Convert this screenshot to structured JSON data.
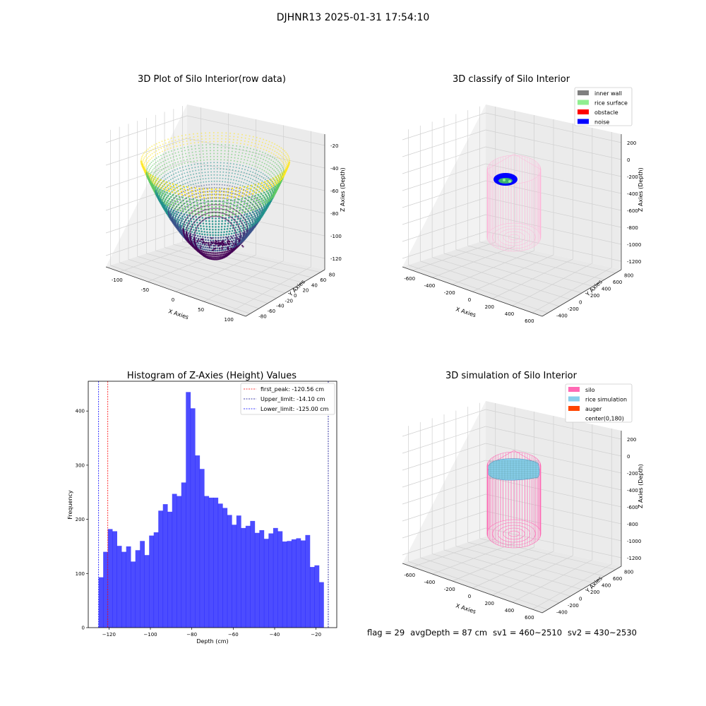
{
  "figure": {
    "suptitle": "DJHNR13 2025-01-31 17:54:10"
  },
  "footer": {
    "flag": "flag = 29",
    "avg_depth": "avgDepth = 87 cm",
    "sv1": "sv1 = 460~2510",
    "sv2": "sv2 = 430~2530"
  },
  "panels": {
    "raw": {
      "title": "3D Plot of Silo Interior(row data)",
      "x_label": "X Axies",
      "y_label": "Y Axies",
      "z_label": "Z Axies (Depth)",
      "x_ticks": [
        "-100",
        "-50",
        "0",
        "50",
        "100"
      ],
      "y_ticks": [
        "-80",
        "-60",
        "-40",
        "-20",
        "0",
        "20",
        "40",
        "60",
        "80"
      ],
      "z_ticks": [
        "-20",
        "-40",
        "-60",
        "-80",
        "-100",
        "-120"
      ],
      "colormap": [
        "#440154",
        "#3b528b",
        "#21918c",
        "#5ec962",
        "#fde725"
      ]
    },
    "classify": {
      "title": "3D classify of Silo Interior",
      "x_label": "X Axies",
      "y_label": "Y Axies",
      "z_label": "Z Axies (Depth)",
      "x_ticks": [
        "-600",
        "-400",
        "-200",
        "0",
        "200",
        "400",
        "600"
      ],
      "y_ticks": [
        "-400",
        "-200",
        "0",
        "200",
        "400",
        "600",
        "800"
      ],
      "z_ticks": [
        "200",
        "0",
        "-200",
        "-400",
        "-600",
        "-800",
        "-1000",
        "-1200"
      ],
      "legend": [
        {
          "label": "inner wall",
          "color": "#808080"
        },
        {
          "label": "rice surface",
          "color": "#90ee90"
        },
        {
          "label": "obstacle",
          "color": "#ff0000"
        },
        {
          "label": "noise",
          "color": "#0000ff"
        }
      ]
    },
    "simulation": {
      "title": "3D simulation of Silo Interior",
      "x_label": "X Axies",
      "y_label": "Y Axies",
      "z_label": "Z Axies (Depth)",
      "x_ticks": [
        "-600",
        "-400",
        "-200",
        "0",
        "200",
        "400",
        "600"
      ],
      "y_ticks": [
        "-400",
        "-200",
        "0",
        "200",
        "400",
        "600",
        "800"
      ],
      "z_ticks": [
        "200",
        "0",
        "-200",
        "-400",
        "-600",
        "-800",
        "-1000",
        "-1200"
      ],
      "legend": [
        {
          "label": "silo",
          "color": "#ff69b4"
        },
        {
          "label": "rice simulation",
          "color": "#87ceeb"
        },
        {
          "label": "auger",
          "color": "#ff4500"
        },
        {
          "label": "center(0,180)",
          "color": ""
        }
      ]
    }
  },
  "chart_data": [
    {
      "type": "bar",
      "title": "Histogram of Z-Axies (Height) Values",
      "xlabel": "Depth (cm)",
      "ylabel": "Frequency",
      "xlim": [
        -130,
        -10
      ],
      "ylim": [
        0,
        455
      ],
      "x_ticks": [
        -120,
        -100,
        -80,
        -60,
        -40,
        -20
      ],
      "y_ticks": [
        0,
        100,
        200,
        300,
        400
      ],
      "bin_start": -125.0,
      "bin_width": 2.218,
      "values": [
        93,
        140,
        182,
        178,
        151,
        140,
        150,
        122,
        143,
        160,
        134,
        170,
        176,
        216,
        228,
        214,
        247,
        243,
        268,
        435,
        405,
        318,
        293,
        243,
        240,
        240,
        229,
        221,
        208,
        190,
        207,
        184,
        188,
        197,
        175,
        180,
        164,
        174,
        184,
        178,
        159,
        160,
        163,
        165,
        161,
        171,
        112,
        115,
        84
      ],
      "color": "#0000ff",
      "lines": [
        {
          "label": "first_peak: -120.56 cm",
          "x": -120.56,
          "color": "#ff0000"
        },
        {
          "label": "Upper_limit: -14.10 cm",
          "x": -14.1,
          "color": "#00008b"
        },
        {
          "label": "Lower_limit: -125.00 cm",
          "x": -125.0,
          "color": "#0000ff"
        }
      ],
      "legend_position": "upper-right"
    }
  ]
}
